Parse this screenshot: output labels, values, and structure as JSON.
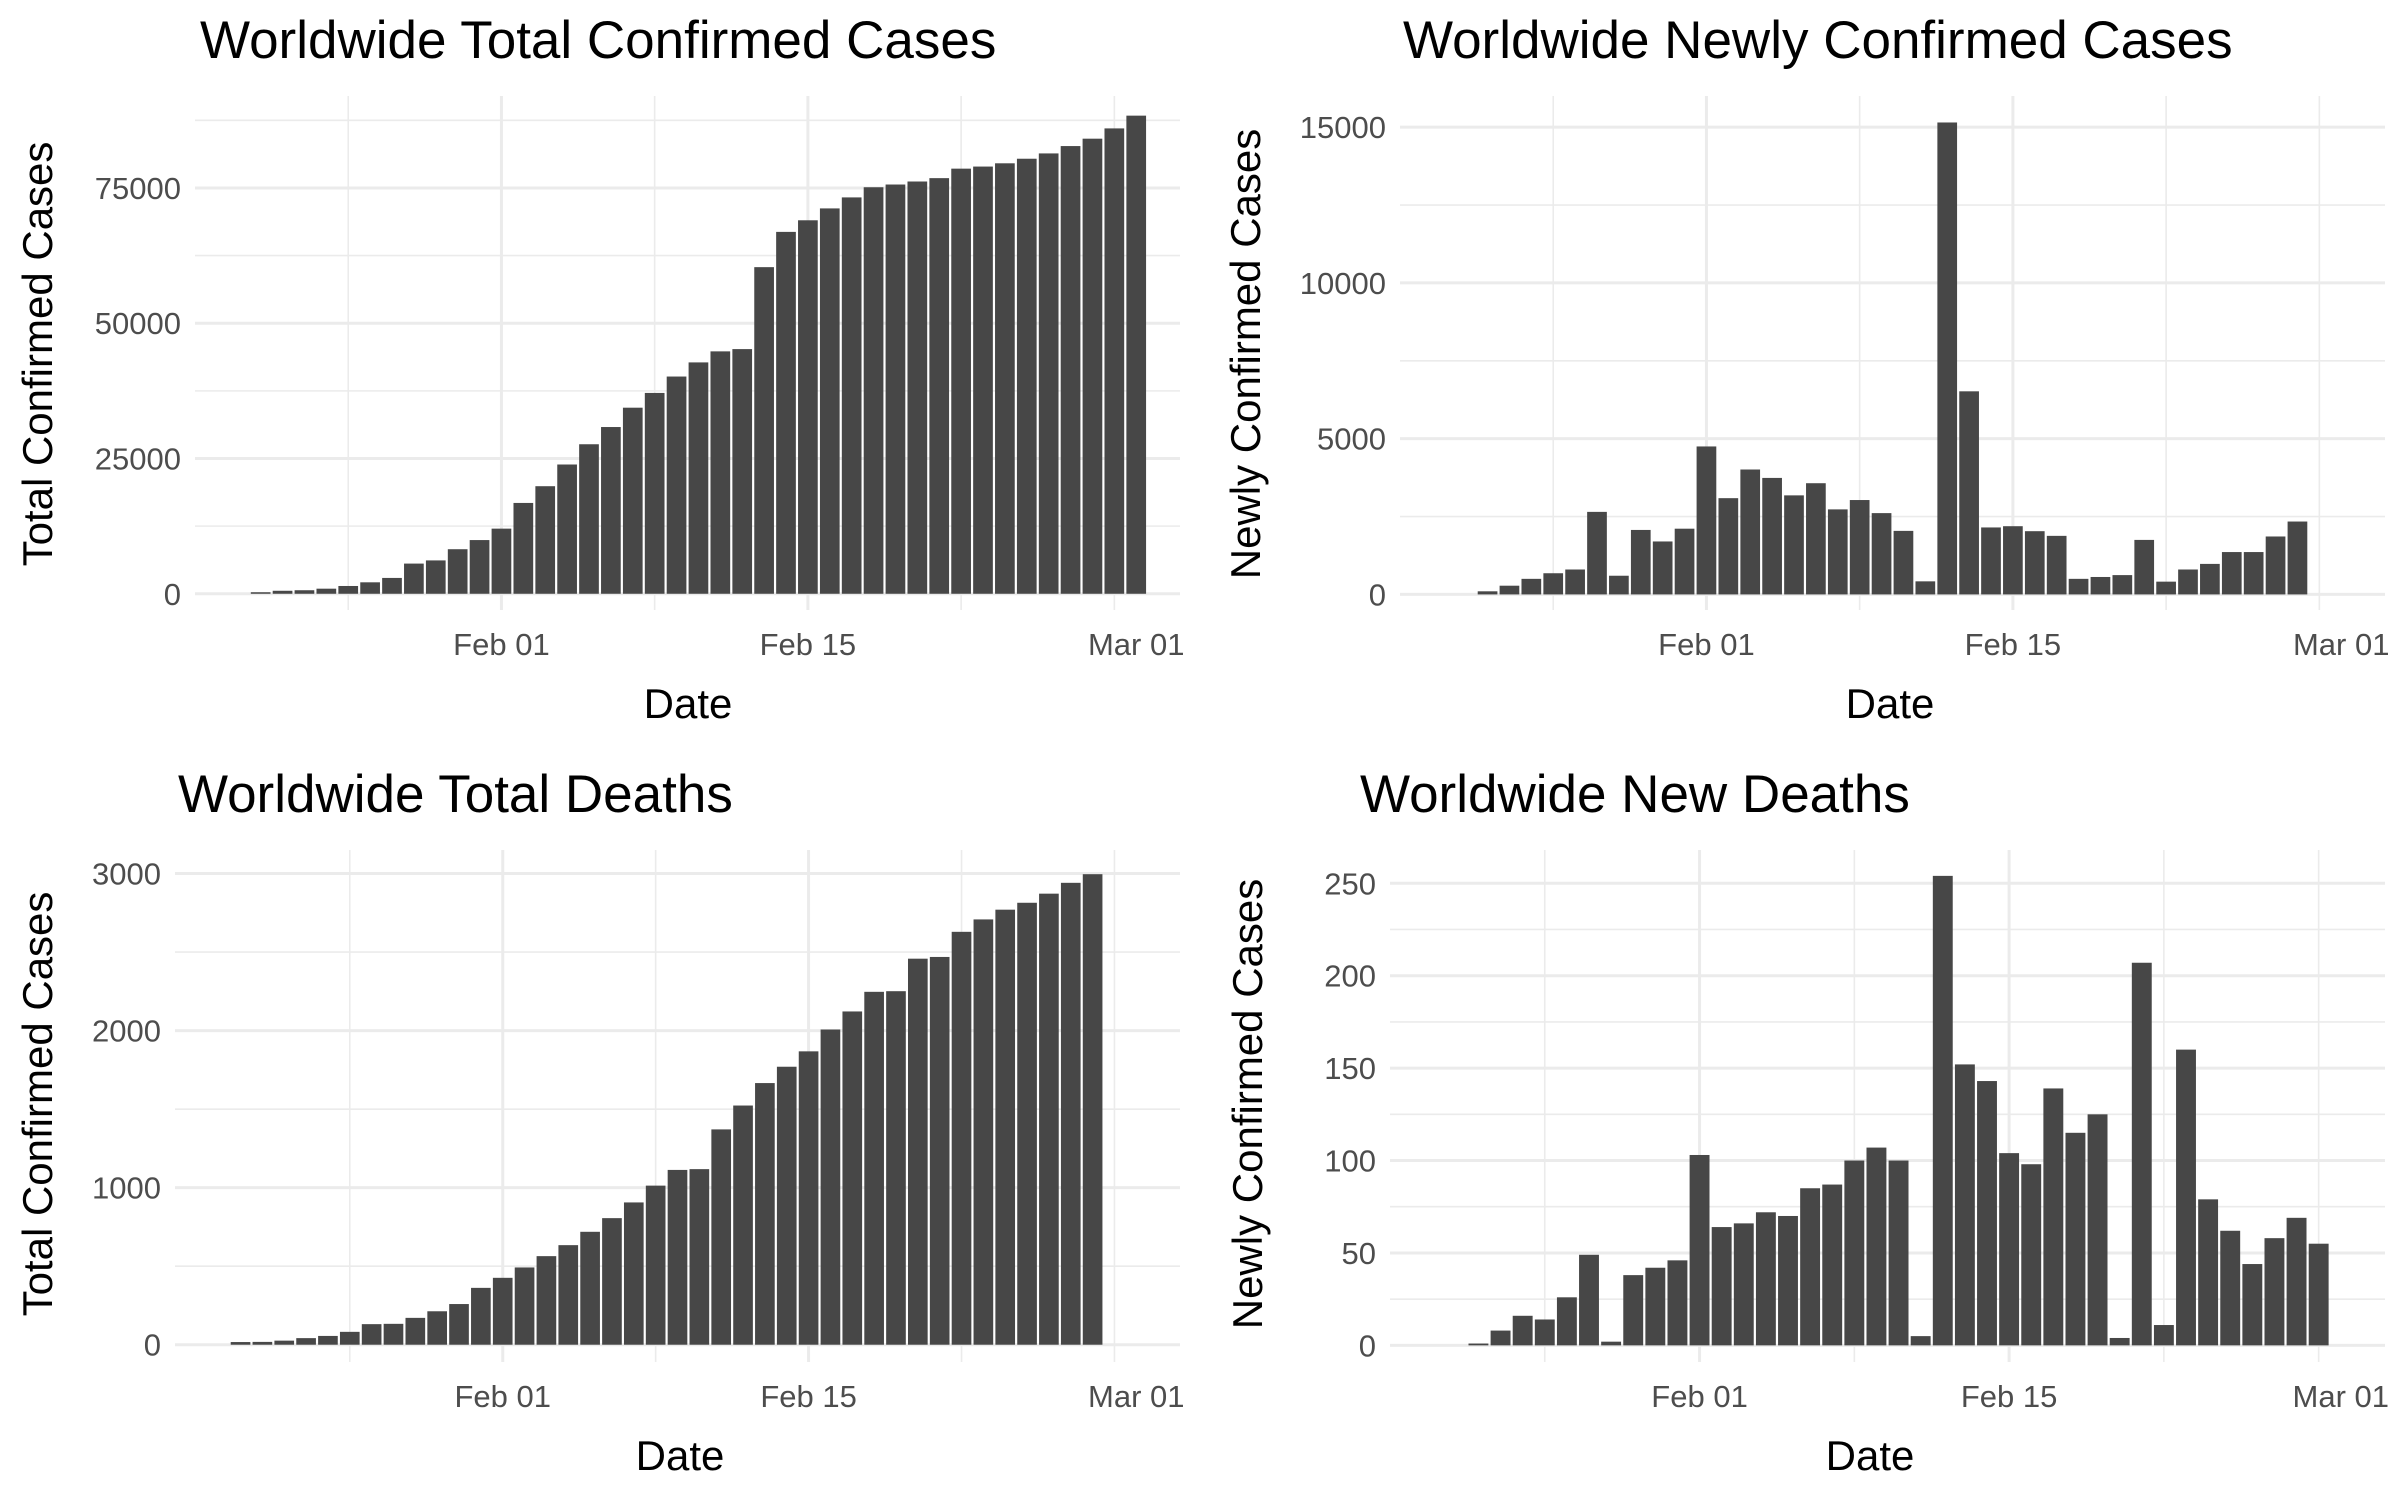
{
  "charts": [
    {
      "type": "bar",
      "title": "Worldwide Total Confirmed Cases",
      "xlabel": "Date",
      "ylabel": "Total Confirmed Cases",
      "xlim": [
        "2020-01-18",
        "2020-03-03"
      ],
      "ylim": [
        -3000,
        92000
      ],
      "xticks": [
        {
          "date": "2020-02-01",
          "label": "Feb 01"
        },
        {
          "date": "2020-02-15",
          "label": "Feb 15"
        },
        {
          "date": "2020-03-01",
          "label": "Mar 01"
        }
      ],
      "yticks": [
        {
          "value": 0,
          "label": "0"
        },
        {
          "value": 25000,
          "label": "25000"
        },
        {
          "value": 50000,
          "label": "50000"
        },
        {
          "value": 75000,
          "label": "75000"
        }
      ],
      "bar_color": "#474747",
      "grid": true,
      "dates": [
        "2020-01-21",
        "2020-01-22",
        "2020-01-23",
        "2020-01-24",
        "2020-01-25",
        "2020-01-26",
        "2020-01-27",
        "2020-01-28",
        "2020-01-29",
        "2020-01-30",
        "2020-01-31",
        "2020-02-01",
        "2020-02-02",
        "2020-02-03",
        "2020-02-04",
        "2020-02-05",
        "2020-02-06",
        "2020-02-07",
        "2020-02-08",
        "2020-02-09",
        "2020-02-10",
        "2020-02-11",
        "2020-02-12",
        "2020-02-13",
        "2020-02-14",
        "2020-02-15",
        "2020-02-16",
        "2020-02-17",
        "2020-02-18",
        "2020-02-19",
        "2020-02-20",
        "2020-02-21",
        "2020-02-22",
        "2020-02-23",
        "2020-02-24",
        "2020-02-25",
        "2020-02-26",
        "2020-02-27",
        "2020-02-28",
        "2020-02-29",
        "2020-03-01"
      ],
      "values": [
        282,
        555,
        653,
        941,
        1438,
        2118,
        2927,
        5578,
        6165,
        8235,
        9925,
        12038,
        16787,
        19881,
        23892,
        27635,
        30817,
        34391,
        37120,
        40150,
        42762,
        44802,
        45221,
        60368,
        66885,
        69030,
        71224,
        73258,
        75136,
        75639,
        76197,
        76819,
        78572,
        78958,
        79561,
        80406,
        81388,
        82746,
        84112,
        86011,
        88369
      ]
    },
    {
      "type": "bar",
      "title": "Worldwide Newly Confirmed Cases",
      "xlabel": "Date",
      "ylabel": "Newly Confirmed Cases",
      "xlim": [
        "2020-01-18",
        "2020-03-03"
      ],
      "ylim": [
        -500,
        16000
      ],
      "xticks": [
        {
          "date": "2020-02-01",
          "label": "Feb 01"
        },
        {
          "date": "2020-02-15",
          "label": "Feb 15"
        },
        {
          "date": "2020-03-01",
          "label": "Mar 01"
        }
      ],
      "yticks": [
        {
          "value": 0,
          "label": "0"
        },
        {
          "value": 5000,
          "label": "5000"
        },
        {
          "value": 10000,
          "label": "10000"
        },
        {
          "value": 15000,
          "label": "15000"
        }
      ],
      "bar_color": "#474747",
      "grid": true,
      "dates": [
        "2020-01-22",
        "2020-01-23",
        "2020-01-24",
        "2020-01-25",
        "2020-01-26",
        "2020-01-27",
        "2020-01-28",
        "2020-01-29",
        "2020-01-30",
        "2020-01-31",
        "2020-02-01",
        "2020-02-02",
        "2020-02-03",
        "2020-02-04",
        "2020-02-05",
        "2020-02-06",
        "2020-02-07",
        "2020-02-08",
        "2020-02-09",
        "2020-02-10",
        "2020-02-11",
        "2020-02-12",
        "2020-02-13",
        "2020-02-14",
        "2020-02-15",
        "2020-02-16",
        "2020-02-17",
        "2020-02-18",
        "2020-02-19",
        "2020-02-20",
        "2020-02-21",
        "2020-02-22",
        "2020-02-23",
        "2020-02-24",
        "2020-02-25",
        "2020-02-26",
        "2020-02-27",
        "2020-02-28",
        "2020-02-29",
        "2020-03-01"
      ],
      "values": [
        100,
        280,
        500,
        680,
        800,
        2650,
        600,
        2070,
        1700,
        2110,
        4750,
        3090,
        4010,
        3740,
        3180,
        3570,
        2730,
        3030,
        2610,
        2040,
        420,
        15150,
        6520,
        2150,
        2190,
        2030,
        1880,
        500,
        560,
        620,
        1750,
        410,
        800,
        980,
        1360,
        1360,
        1860,
        2340,
        0,
        0
      ]
    },
    {
      "type": "bar",
      "title": "Worldwide Total Deaths",
      "xlabel": "Date",
      "ylabel": "Total Confirmed Cases",
      "xlim": [
        "2020-01-17",
        "2020-03-03"
      ],
      "ylim": [
        -110,
        3150
      ],
      "xticks": [
        {
          "date": "2020-02-01",
          "label": "Feb 01"
        },
        {
          "date": "2020-02-15",
          "label": "Feb 15"
        },
        {
          "date": "2020-03-01",
          "label": "Mar 01"
        }
      ],
      "yticks": [
        {
          "value": 0,
          "label": "0"
        },
        {
          "value": 1000,
          "label": "1000"
        },
        {
          "value": 2000,
          "label": "2000"
        },
        {
          "value": 3000,
          "label": "3000"
        }
      ],
      "bar_color": "#474747",
      "grid": true,
      "dates": [
        "2020-01-20",
        "2020-01-21",
        "2020-01-22",
        "2020-01-23",
        "2020-01-24",
        "2020-01-25",
        "2020-01-26",
        "2020-01-27",
        "2020-01-28",
        "2020-01-29",
        "2020-01-30",
        "2020-01-31",
        "2020-02-01",
        "2020-02-02",
        "2020-02-03",
        "2020-02-04",
        "2020-02-05",
        "2020-02-06",
        "2020-02-07",
        "2020-02-08",
        "2020-02-09",
        "2020-02-10",
        "2020-02-11",
        "2020-02-12",
        "2020-02-13",
        "2020-02-14",
        "2020-02-15",
        "2020-02-16",
        "2020-02-17",
        "2020-02-18",
        "2020-02-19",
        "2020-02-20",
        "2020-02-21",
        "2020-02-22",
        "2020-02-23",
        "2020-02-24",
        "2020-02-25",
        "2020-02-26",
        "2020-02-27",
        "2020-02-28",
        "2020-02-29",
        "2020-03-01"
      ],
      "values": [
        17,
        18,
        26,
        42,
        56,
        82,
        131,
        133,
        171,
        213,
        259,
        362,
        426,
        492,
        564,
        634,
        719,
        806,
        906,
        1013,
        1113,
        1118,
        1371,
        1523,
        1666,
        1770,
        1868,
        2007,
        2122,
        2247,
        2251,
        2458,
        2469,
        2629,
        2708,
        2770,
        2814,
        2872,
        2941,
        2996,
        0,
        0
      ]
    },
    {
      "type": "bar",
      "title": "Worldwide New Deaths",
      "xlabel": "Date",
      "ylabel": "Newly Confirmed Cases",
      "xlim": [
        "2020-01-18",
        "2020-03-03"
      ],
      "ylim": [
        -9,
        268
      ],
      "xticks": [
        {
          "date": "2020-02-01",
          "label": "Feb 01"
        },
        {
          "date": "2020-02-15",
          "label": "Feb 15"
        },
        {
          "date": "2020-03-01",
          "label": "Mar 01"
        }
      ],
      "yticks": [
        {
          "value": 0,
          "label": "0"
        },
        {
          "value": 50,
          "label": "50"
        },
        {
          "value": 100,
          "label": "100"
        },
        {
          "value": 150,
          "label": "150"
        },
        {
          "value": 200,
          "label": "200"
        },
        {
          "value": 250,
          "label": "250"
        }
      ],
      "bar_color": "#474747",
      "grid": true,
      "dates": [
        "2020-01-22",
        "2020-01-23",
        "2020-01-24",
        "2020-01-25",
        "2020-01-26",
        "2020-01-27",
        "2020-01-28",
        "2020-01-29",
        "2020-01-30",
        "2020-01-31",
        "2020-02-01",
        "2020-02-02",
        "2020-02-03",
        "2020-02-04",
        "2020-02-05",
        "2020-02-06",
        "2020-02-07",
        "2020-02-08",
        "2020-02-09",
        "2020-02-10",
        "2020-02-11",
        "2020-02-12",
        "2020-02-13",
        "2020-02-14",
        "2020-02-15",
        "2020-02-16",
        "2020-02-17",
        "2020-02-18",
        "2020-02-19",
        "2020-02-20",
        "2020-02-21",
        "2020-02-22",
        "2020-02-23",
        "2020-02-24",
        "2020-02-25",
        "2020-02-26",
        "2020-02-27",
        "2020-02-28",
        "2020-02-29",
        "2020-03-01"
      ],
      "values": [
        1,
        8,
        16,
        14,
        26,
        49,
        2,
        38,
        42,
        46,
        103,
        64,
        66,
        72,
        70,
        85,
        87,
        100,
        107,
        100,
        5,
        254,
        152,
        143,
        104,
        98,
        139,
        115,
        125,
        4,
        207,
        11,
        160,
        79,
        62,
        44,
        58,
        69,
        55,
        0
      ]
    }
  ]
}
